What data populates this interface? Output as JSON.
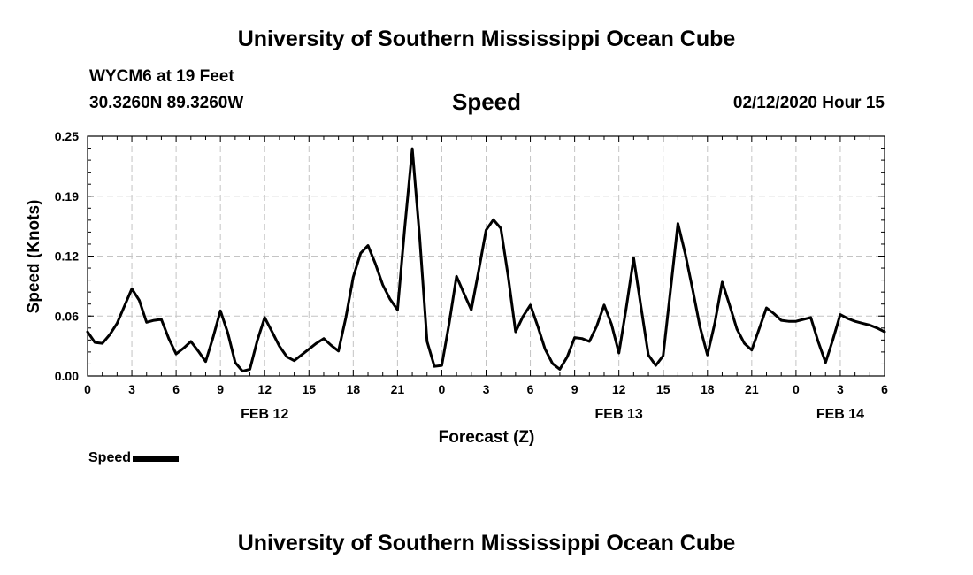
{
  "header": {
    "title": "University of Southern Mississippi Ocean Cube",
    "station": "WYCM6 at 19 Feet",
    "coords": "30.3260N 89.3260W",
    "datetime": "02/12/2020 Hour 15"
  },
  "footer": {
    "title": "University of Southern Mississippi Ocean Cube"
  },
  "chart_data": {
    "type": "line",
    "title": "Speed",
    "xlabel": "Forecast (Z)",
    "ylabel": "Speed (Knots)",
    "xlim": [
      0,
      54
    ],
    "ylim": [
      0,
      0.25
    ],
    "yticks": [
      "0.00",
      "0.06",
      "0.12",
      "0.19",
      "0.25"
    ],
    "ytick_values": [
      0,
      0.0625,
      0.125,
      0.1875,
      0.25
    ],
    "xticks": [
      "0",
      "3",
      "6",
      "9",
      "12",
      "15",
      "18",
      "21",
      "0",
      "3",
      "6",
      "9",
      "12",
      "15",
      "18",
      "21",
      "0",
      "3",
      "6"
    ],
    "xtick_values": [
      0,
      3,
      6,
      9,
      12,
      15,
      18,
      21,
      24,
      27,
      30,
      33,
      36,
      39,
      42,
      45,
      48,
      51,
      54
    ],
    "date_labels": [
      {
        "label": "FEB 12",
        "x": 12
      },
      {
        "label": "FEB 13",
        "x": 36
      },
      {
        "label": "FEB 14",
        "x": 51
      }
    ],
    "grid": true,
    "legend_position": "bottom-left",
    "series": [
      {
        "name": "Speed",
        "color": "#000000",
        "x": [
          0,
          0.5,
          1,
          1.5,
          2,
          2.5,
          3,
          3.5,
          4,
          4.5,
          5,
          5.5,
          6,
          6.5,
          7,
          7.5,
          8,
          8.5,
          9,
          9.5,
          10,
          10.5,
          11,
          11.5,
          12,
          12.5,
          13,
          13.5,
          14,
          14.5,
          15,
          15.5,
          16,
          16.5,
          17,
          17.5,
          18,
          18.5,
          19,
          19.5,
          20,
          20.5,
          21,
          21.5,
          22,
          22.5,
          23,
          23.5,
          24,
          24.5,
          25,
          25.5,
          26,
          26.5,
          27,
          27.5,
          28,
          28.5,
          29,
          29.5,
          30,
          30.5,
          31,
          31.5,
          32,
          32.5,
          33,
          33.5,
          34,
          34.5,
          35,
          35.5,
          36,
          36.5,
          37,
          37.5,
          38,
          38.5,
          39,
          39.5,
          40,
          40.5,
          41,
          41.5,
          42,
          42.5,
          43,
          43.5,
          44,
          44.5,
          45,
          45.5,
          46,
          46.5,
          47,
          47.5,
          48,
          48.5,
          49,
          49.5,
          50,
          50.5,
          51,
          51.5,
          52,
          52.5,
          53,
          53.5,
          54
        ],
        "y": [
          0.046,
          0.035,
          0.034,
          0.043,
          0.055,
          0.073,
          0.091,
          0.079,
          0.056,
          0.058,
          0.059,
          0.039,
          0.023,
          0.029,
          0.036,
          0.026,
          0.015,
          0.04,
          0.068,
          0.045,
          0.014,
          0.005,
          0.007,
          0.037,
          0.061,
          0.046,
          0.031,
          0.02,
          0.016,
          0.022,
          0.028,
          0.034,
          0.039,
          0.032,
          0.026,
          0.061,
          0.103,
          0.128,
          0.136,
          0.117,
          0.095,
          0.08,
          0.069,
          0.156,
          0.237,
          0.145,
          0.036,
          0.01,
          0.011,
          0.055,
          0.104,
          0.086,
          0.069,
          0.11,
          0.152,
          0.163,
          0.154,
          0.104,
          0.046,
          0.062,
          0.074,
          0.052,
          0.028,
          0.013,
          0.007,
          0.02,
          0.04,
          0.039,
          0.036,
          0.052,
          0.074,
          0.054,
          0.024,
          0.071,
          0.123,
          0.072,
          0.022,
          0.011,
          0.021,
          0.09,
          0.159,
          0.127,
          0.09,
          0.051,
          0.022,
          0.055,
          0.098,
          0.074,
          0.049,
          0.034,
          0.027,
          0.049,
          0.071,
          0.065,
          0.058,
          0.057,
          0.057,
          0.059,
          0.061,
          0.036,
          0.014,
          0.038,
          0.064,
          0.06,
          0.057,
          0.055,
          0.053,
          0.05,
          0.046
        ]
      }
    ]
  }
}
